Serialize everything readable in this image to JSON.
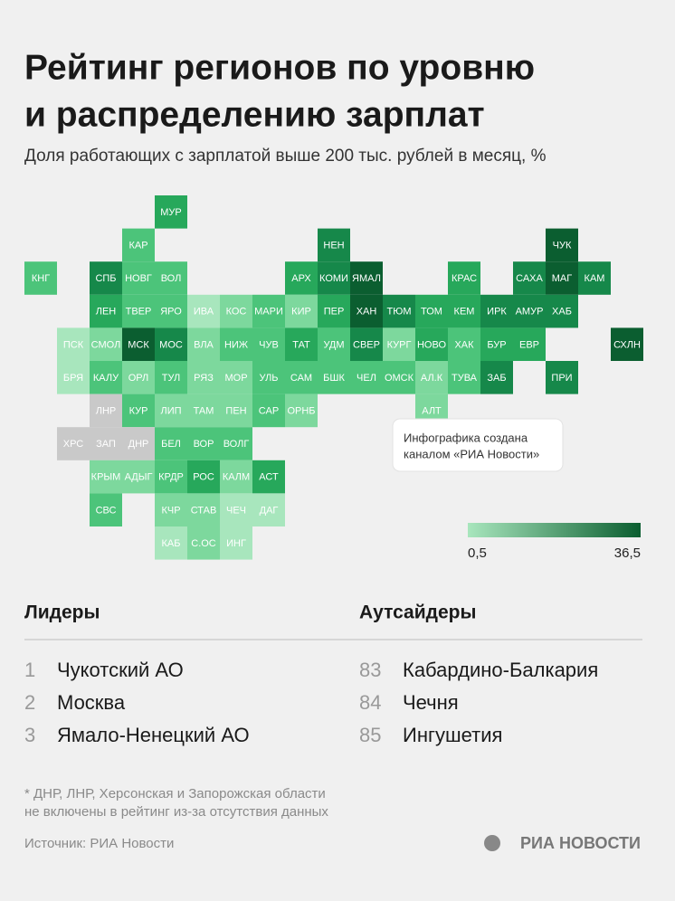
{
  "header": {
    "title_lines": [
      "Рейтинг регионов по уровню",
      "и распределению зарплат"
    ],
    "subtitle": "Доля работающих с зарплатой выше 200 тыс. рублей в месяц, %"
  },
  "tiles": [
    {
      "label": "МУР",
      "color": "#27a85b"
    },
    {
      "label": "КАР",
      "color": "#4cc47a"
    },
    {
      "label": "НЕН",
      "color": "#16884a"
    },
    {
      "label": "ЧУК",
      "color": "#0b5e30"
    },
    {
      "label": "КНГ",
      "color": "#4cc47a"
    },
    {
      "label": "СПБ",
      "color": "#16884a"
    },
    {
      "label": "НОВГ",
      "color": "#4cc47a"
    },
    {
      "label": "ВОЛ",
      "color": "#4cc47a"
    },
    {
      "label": "АРХ",
      "color": "#27a85b"
    },
    {
      "label": "КОМИ",
      "color": "#16884a"
    },
    {
      "label": "ЯМАЛ",
      "color": "#0b5e30"
    },
    {
      "label": "КРАС",
      "color": "#27a85b"
    },
    {
      "label": "САХА",
      "color": "#16884a"
    },
    {
      "label": "МАГ",
      "color": "#0b5e30"
    },
    {
      "label": "КАМ",
      "color": "#16884a"
    },
    {
      "label": "ЛЕН",
      "color": "#27a85b"
    },
    {
      "label": "ТВЕР",
      "color": "#4cc47a"
    },
    {
      "label": "ЯРО",
      "color": "#4cc47a"
    },
    {
      "label": "ИВА",
      "color": "#a8e6bd"
    },
    {
      "label": "КОС",
      "color": "#7dd89d"
    },
    {
      "label": "МАРИ",
      "color": "#4cc47a"
    },
    {
      "label": "КИР",
      "color": "#7dd89d"
    },
    {
      "label": "ПЕР",
      "color": "#27a85b"
    },
    {
      "label": "ХАН",
      "color": "#0b5e30"
    },
    {
      "label": "ТЮМ",
      "color": "#16884a"
    },
    {
      "label": "ТОМ",
      "color": "#27a85b"
    },
    {
      "label": "КЕМ",
      "color": "#27a85b"
    },
    {
      "label": "ИРК",
      "color": "#16884a"
    },
    {
      "label": "АМУР",
      "color": "#16884a"
    },
    {
      "label": "ХАБ",
      "color": "#16884a"
    },
    {
      "label": "ПСК",
      "color": "#a8e6bd"
    },
    {
      "label": "СМОЛ",
      "color": "#7dd89d"
    },
    {
      "label": "МСК",
      "color": "#0b5e30"
    },
    {
      "label": "МОС",
      "color": "#16884a"
    },
    {
      "label": "ВЛА",
      "color": "#7dd89d"
    },
    {
      "label": "НИЖ",
      "color": "#4cc47a"
    },
    {
      "label": "ЧУВ",
      "color": "#4cc47a"
    },
    {
      "label": "ТАТ",
      "color": "#27a85b"
    },
    {
      "label": "УДМ",
      "color": "#4cc47a"
    },
    {
      "label": "СВЕР",
      "color": "#16884a"
    },
    {
      "label": "КУРГ",
      "color": "#7dd89d"
    },
    {
      "label": "НОВО",
      "color": "#27a85b"
    },
    {
      "label": "ХАК",
      "color": "#4cc47a"
    },
    {
      "label": "БУР",
      "color": "#27a85b"
    },
    {
      "label": "ЕВР",
      "color": "#27a85b"
    },
    {
      "label": "СХЛН",
      "color": "#0b5e30"
    },
    {
      "label": "БРЯ",
      "color": "#a8e6bd"
    },
    {
      "label": "КАЛУ",
      "color": "#4cc47a"
    },
    {
      "label": "ОРЛ",
      "color": "#7dd89d"
    },
    {
      "label": "ТУЛ",
      "color": "#4cc47a"
    },
    {
      "label": "РЯЗ",
      "color": "#7dd89d"
    },
    {
      "label": "МОР",
      "color": "#7dd89d"
    },
    {
      "label": "УЛЬ",
      "color": "#4cc47a"
    },
    {
      "label": "САМ",
      "color": "#4cc47a"
    },
    {
      "label": "БШК",
      "color": "#4cc47a"
    },
    {
      "label": "ЧЕЛ",
      "color": "#4cc47a"
    },
    {
      "label": "ОМСК",
      "color": "#4cc47a"
    },
    {
      "label": "АЛ.К",
      "color": "#7dd89d"
    },
    {
      "label": "ТУВА",
      "color": "#4cc47a"
    },
    {
      "label": "ЗАБ",
      "color": "#16884a"
    },
    {
      "label": "ПРИ",
      "color": "#16884a"
    },
    {
      "label": "ЛНР",
      "color": "#c9c9c9"
    },
    {
      "label": "КУР",
      "color": "#4cc47a"
    },
    {
      "label": "ЛИП",
      "color": "#7dd89d"
    },
    {
      "label": "ТАМ",
      "color": "#7dd89d"
    },
    {
      "label": "ПЕН",
      "color": "#7dd89d"
    },
    {
      "label": "САР",
      "color": "#4cc47a"
    },
    {
      "label": "ОРНБ",
      "color": "#7dd89d"
    },
    {
      "label": "АЛТ",
      "color": "#7dd89d"
    },
    {
      "label": "ХРС",
      "color": "#c9c9c9"
    },
    {
      "label": "ЗАП",
      "color": "#c9c9c9"
    },
    {
      "label": "ДНР",
      "color": "#c9c9c9"
    },
    {
      "label": "БЕЛ",
      "color": "#4cc47a"
    },
    {
      "label": "ВОР",
      "color": "#4cc47a"
    },
    {
      "label": "ВОЛГ",
      "color": "#4cc47a"
    },
    {
      "label": "КРЫМ",
      "color": "#7dd89d"
    },
    {
      "label": "АДЫГ",
      "color": "#7dd89d"
    },
    {
      "label": "КРДР",
      "color": "#4cc47a"
    },
    {
      "label": "РОС",
      "color": "#27a85b"
    },
    {
      "label": "КАЛМ",
      "color": "#7dd89d"
    },
    {
      "label": "АСТ",
      "color": "#27a85b"
    },
    {
      "label": "СВС",
      "color": "#4cc47a"
    },
    {
      "label": "КЧР",
      "color": "#7dd89d"
    },
    {
      "label": "СТАВ",
      "color": "#7dd89d"
    },
    {
      "label": "ЧЕЧ",
      "color": "#a8e6bd"
    },
    {
      "label": "ДАГ",
      "color": "#a8e6bd"
    },
    {
      "label": "КАБ",
      "color": "#a8e6bd"
    },
    {
      "label": "С.ОС",
      "color": "#7dd89d"
    },
    {
      "label": "ИНГ",
      "color": "#a8e6bd"
    }
  ],
  "callout": [
    "Инфографика создана",
    "каналом «РИА Новости»"
  ],
  "legend": {
    "min_label": "0,5",
    "max_label": "36,5",
    "color_low": "#a8e6bd",
    "color_high": "#0b5e30"
  },
  "leaders": {
    "title": "Лидеры",
    "items": [
      {
        "rank": 1,
        "name": "Чукотский АО"
      },
      {
        "rank": 2,
        "name": "Москва"
      },
      {
        "rank": 3,
        "name": "Ямало-Ненецкий АО"
      }
    ]
  },
  "outsiders": {
    "title": "Аутсайдеры",
    "items": [
      {
        "rank": 83,
        "name": "Кабардино-Балкария"
      },
      {
        "rank": 84,
        "name": "Чечня"
      },
      {
        "rank": 85,
        "name": "Ингушетия"
      }
    ]
  },
  "footnote": [
    "* ДНР, ЛНР, Херсонская и Запорожская области",
    "не включены в рейтинг из-за отсутствия данных"
  ],
  "source": "Источник: РИА Новости",
  "logo": "РИА НОВОСТИ"
}
